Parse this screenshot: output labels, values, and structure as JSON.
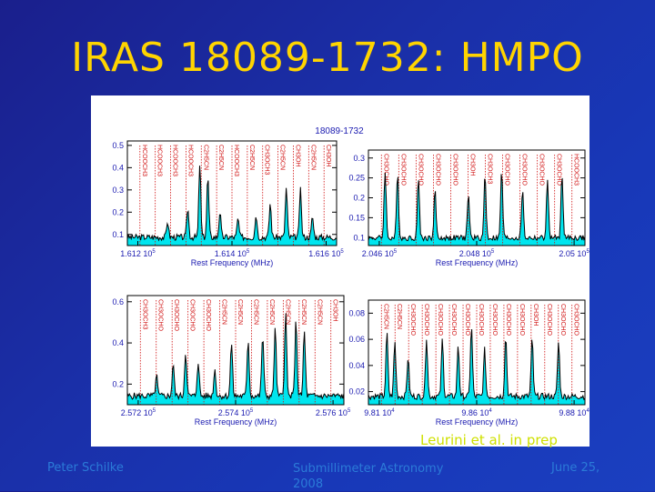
{
  "slide": {
    "title": "IRAS 18089-1732: HMPO",
    "credit": "Leurini et al. in prep",
    "footer_left": "Peter Schilke",
    "footer_center_line1": "Submillimeter Astronomy",
    "footer_center_line2": "2008",
    "footer_right": "June 25,"
  },
  "colors": {
    "background": "#1a2fa8",
    "title": "#ffd400",
    "fill": "#00e5ee",
    "line_labels": "#d01010",
    "spectrum": "#000000",
    "axis_labels": "#1a1ab0"
  },
  "chart_data": [
    {
      "type": "line",
      "title": "18089-1732",
      "xlabel": "Rest Frequency (MHz)",
      "xticks": [
        "1.612 10^5",
        "1.614 10^5",
        "1.616 10^5"
      ],
      "yticks": [
        "0.1",
        "0.2",
        "0.3",
        "0.4",
        "0.5"
      ],
      "ylim": [
        0.05,
        0.52
      ],
      "xlim": [
        161180,
        161700
      ],
      "peaks": [
        {
          "x": 161280,
          "y": 0.16
        },
        {
          "x": 161330,
          "y": 0.22
        },
        {
          "x": 161360,
          "y": 0.42
        },
        {
          "x": 161380,
          "y": 0.36
        },
        {
          "x": 161410,
          "y": 0.2
        },
        {
          "x": 161455,
          "y": 0.17
        },
        {
          "x": 161500,
          "y": 0.19
        },
        {
          "x": 161535,
          "y": 0.24
        },
        {
          "x": 161575,
          "y": 0.31
        },
        {
          "x": 161610,
          "y": 0.3
        },
        {
          "x": 161640,
          "y": 0.18
        }
      ],
      "line_ids": [
        "HCOOCH3",
        "HCOOCH3",
        "HCOOCH3",
        "HCOOCH3",
        "C2H5CN",
        "C2H5CN",
        "HCOOCH3",
        "C2H5CN",
        "CH3OCH3",
        "C2H5CN",
        "CH3OH",
        "C2H5CN",
        "CH3OH"
      ]
    },
    {
      "type": "line",
      "xlabel": "Rest Frequency (MHz)",
      "xticks": [
        "2.046 10^5",
        "2.048 10^5",
        "2.05 10^5"
      ],
      "yticks": [
        "0.1",
        "0.15",
        "0.2",
        "0.25",
        "0.3"
      ],
      "ylim": [
        0.08,
        0.32
      ],
      "xlim": [
        204520,
        205040
      ],
      "peaks": [
        {
          "x": 204560,
          "y": 0.27
        },
        {
          "x": 204590,
          "y": 0.26
        },
        {
          "x": 204640,
          "y": 0.25
        },
        {
          "x": 204680,
          "y": 0.22
        },
        {
          "x": 204760,
          "y": 0.21
        },
        {
          "x": 204800,
          "y": 0.26
        },
        {
          "x": 204840,
          "y": 0.27
        },
        {
          "x": 204890,
          "y": 0.22
        },
        {
          "x": 204950,
          "y": 0.24
        },
        {
          "x": 204985,
          "y": 0.26
        }
      ],
      "line_ids": [
        "CH3OCHO",
        "CH3OCHO",
        "CH3OCHO",
        "CH3OCHO",
        "CH3OCHO",
        "CH3OH",
        "CH3OCH3",
        "CH3OCHO",
        "CH3OCHO",
        "CH3OCHO",
        "CH3OCHO",
        "HCOOCH3"
      ]
    },
    {
      "type": "line",
      "xlabel": "Rest Frequency (MHz)",
      "xticks": [
        "2.572 10^5",
        "2.574 10^5",
        "2.576 10^5"
      ],
      "yticks": [
        "0.2",
        "0.4",
        "0.6"
      ],
      "ylim": [
        0.1,
        0.63
      ],
      "xlim": [
        257120,
        257640
      ],
      "peaks": [
        {
          "x": 257190,
          "y": 0.24
        },
        {
          "x": 257230,
          "y": 0.3
        },
        {
          "x": 257260,
          "y": 0.36
        },
        {
          "x": 257290,
          "y": 0.31
        },
        {
          "x": 257330,
          "y": 0.27
        },
        {
          "x": 257370,
          "y": 0.4
        },
        {
          "x": 257410,
          "y": 0.42
        },
        {
          "x": 257445,
          "y": 0.44
        },
        {
          "x": 257475,
          "y": 0.47
        },
        {
          "x": 257500,
          "y": 0.55
        },
        {
          "x": 257525,
          "y": 0.51
        },
        {
          "x": 257545,
          "y": 0.46
        }
      ],
      "line_ids": [
        "CH3OCH3",
        "CH3OCHO",
        "CH3OCHO",
        "CH3OCHO",
        "CH3OCHO",
        "C2H5CN",
        "C2H5CN",
        "C2H5CN",
        "C2H5CN",
        "C2H5CN",
        "C2H5CN",
        "C2H5CN",
        "CH3OH"
      ]
    },
    {
      "type": "line",
      "xlabel": "Rest Frequency (MHz)",
      "xticks": [
        "9.81 10^4",
        "9.86 10^4",
        "9.88 10^4"
      ],
      "yticks": [
        "0.02",
        "0.04",
        "0.06",
        "0.08"
      ],
      "ylim": [
        0.01,
        0.09
      ],
      "xlim": [
        98080,
        98900
      ],
      "peaks": [
        {
          "x": 98150,
          "y": 0.065
        },
        {
          "x": 98180,
          "y": 0.058
        },
        {
          "x": 98230,
          "y": 0.046
        },
        {
          "x": 98300,
          "y": 0.062
        },
        {
          "x": 98360,
          "y": 0.06
        },
        {
          "x": 98420,
          "y": 0.056
        },
        {
          "x": 98470,
          "y": 0.07
        },
        {
          "x": 98520,
          "y": 0.052
        },
        {
          "x": 98600,
          "y": 0.063
        },
        {
          "x": 98700,
          "y": 0.06
        },
        {
          "x": 98800,
          "y": 0.058
        }
      ],
      "line_ids": [
        "C2H5CN",
        "C2H5CN",
        "CH3OCHO",
        "CH3OCHO",
        "CH3OCHO",
        "CH3OCHO",
        "CH3OCHO",
        "CH3OCHO",
        "CH3OCHO",
        "CH3OCHO",
        "CH3OCHO",
        "CH3OH",
        "CH3OCHO",
        "CH3OCHO",
        "CH3OCHO"
      ]
    }
  ]
}
